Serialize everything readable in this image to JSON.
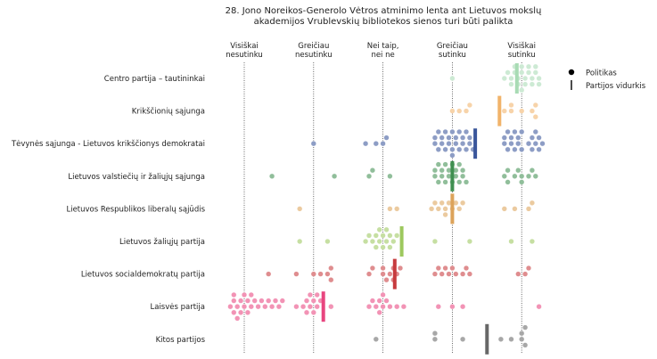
{
  "chart_data": {
    "type": "scatter",
    "title": "28. Jono Noreikos-Generolo Vėtros atminimo lenta ant Lietuvos mokslų akademijos Vrublevskių bibliotekos sienos turi būti palikta",
    "title_lines": [
      "28. Jono Noreikos-Generolo Vėtros atminimo lenta ant Lietuvos mokslų",
      "akademijos Vrublevskių bibliotekos sienos turi būti palikta"
    ],
    "scale": [
      {
        "lines": [
          "Visiškai",
          "nesutinku"
        ]
      },
      {
        "lines": [
          "Greičiau",
          "nesutinku"
        ]
      },
      {
        "lines": [
          "Nei taip,",
          "nei ne"
        ]
      },
      {
        "lines": [
          "Greičiau",
          "sutinku"
        ]
      },
      {
        "lines": [
          "Visiškai",
          "sutinku"
        ]
      }
    ],
    "xlim": [
      0.5,
      5.5
    ],
    "legend": {
      "position": "top-right",
      "entries": [
        {
          "label": "Politikas",
          "marker": "dot"
        },
        {
          "label": "Partijos vidurkis",
          "marker": "bar"
        }
      ]
    },
    "parties": [
      {
        "name": "Centro partija – tautininkai",
        "color": "#a8dbb4",
        "mean": 4.93,
        "points": [
          4.0,
          4.75,
          4.8,
          4.85,
          4.85,
          4.9,
          4.9,
          4.95,
          4.95,
          5.0,
          5.0,
          5.0,
          5.05,
          5.05,
          5.1,
          5.1,
          5.15,
          5.15,
          5.2,
          5.2,
          5.25,
          5.25
        ]
      },
      {
        "name": "Krikščionių sąjunga",
        "color": "#f1b36a",
        "mean": 4.68,
        "points": [
          4.0,
          4.1,
          4.2,
          4.25,
          4.75,
          4.85,
          4.85,
          5.0,
          5.15,
          5.2,
          5.2
        ]
      },
      {
        "name": "Tėvynės sąjunga - Lietuvos krikščionys demokratai",
        "color": "#3a569b",
        "mean": 4.33,
        "points": [
          2.0,
          2.75,
          2.9,
          3.0,
          3.05,
          3.75,
          3.75,
          3.8,
          3.8,
          3.85,
          3.85,
          3.9,
          3.9,
          3.95,
          3.95,
          4.0,
          4.0,
          4.0,
          4.05,
          4.05,
          4.1,
          4.1,
          4.15,
          4.15,
          4.2,
          4.2,
          4.25,
          4.25,
          4.3,
          4.75,
          4.75,
          4.8,
          4.8,
          4.85,
          4.85,
          4.9,
          4.9,
          4.95,
          4.95,
          5.0,
          5.0,
          5.1,
          5.15,
          5.15,
          5.2,
          5.2,
          5.25,
          5.25,
          5.3
        ]
      },
      {
        "name": "Lietuvos valstiečių ir žaliųjų sąjunga",
        "color": "#3f8f50",
        "mean": 4.0,
        "points": [
          1.4,
          2.3,
          2.8,
          2.85,
          3.1,
          3.75,
          3.75,
          3.8,
          3.8,
          3.85,
          3.85,
          3.9,
          3.9,
          3.95,
          3.95,
          4.0,
          4.0,
          4.05,
          4.05,
          4.1,
          4.1,
          4.15,
          4.15,
          4.2,
          4.75,
          4.8,
          4.8,
          4.9,
          4.95,
          5.0,
          5.0,
          5.1,
          5.15,
          5.2
        ]
      },
      {
        "name": "Lietuvos Respublikos liberalų sąjūdis",
        "color": "#dca35a",
        "mean": 4.0,
        "points": [
          1.8,
          3.1,
          3.2,
          3.7,
          3.75,
          3.8,
          3.85,
          3.9,
          3.9,
          3.95,
          4.0,
          4.05,
          4.1,
          4.15,
          4.75,
          4.9,
          5.1,
          5.15
        ]
      },
      {
        "name": "Lietuvos žaliųjų partija",
        "color": "#9dc85e",
        "mean": 3.27,
        "points": [
          1.8,
          2.2,
          2.75,
          2.8,
          2.85,
          2.9,
          2.9,
          2.95,
          2.95,
          3.0,
          3.0,
          3.05,
          3.05,
          3.1,
          3.1,
          3.15,
          3.2,
          3.75,
          4.25,
          4.85,
          5.15
        ]
      },
      {
        "name": "Lietuvos socialdemokratų partija",
        "color": "#c73b3e",
        "mean": 3.17,
        "points": [
          1.35,
          1.75,
          2.0,
          2.1,
          2.2,
          2.25,
          2.25,
          2.8,
          2.85,
          3.0,
          3.0,
          3.05,
          3.1,
          3.15,
          3.15,
          3.2,
          3.25,
          3.75,
          3.8,
          3.85,
          3.9,
          3.95,
          4.0,
          4.05,
          4.15,
          4.2,
          4.25,
          4.95,
          5.05,
          5.1
        ]
      },
      {
        "name": "Laisvės partija",
        "color": "#e8457f",
        "mean": 2.14,
        "points": [
          0.8,
          0.85,
          0.85,
          0.85,
          0.9,
          0.9,
          0.95,
          0.95,
          1.0,
          1.0,
          1.05,
          1.05,
          1.1,
          1.1,
          1.15,
          1.2,
          1.25,
          1.3,
          1.35,
          1.4,
          1.45,
          1.5,
          1.55,
          1.75,
          1.85,
          1.9,
          1.9,
          1.95,
          1.95,
          2.0,
          2.0,
          2.05,
          2.05,
          2.1,
          2.25,
          2.8,
          2.85,
          2.9,
          2.95,
          2.95,
          3.0,
          3.0,
          3.05,
          3.1,
          3.2,
          3.3,
          3.8,
          4.0,
          4.15,
          5.25
        ]
      },
      {
        "name": "Kitos partijos",
        "color": "#676767",
        "mean": 4.5,
        "points": [
          2.9,
          3.75,
          3.75,
          4.15,
          4.7,
          4.85,
          5.0,
          5.0,
          5.05,
          5.05
        ]
      }
    ]
  }
}
